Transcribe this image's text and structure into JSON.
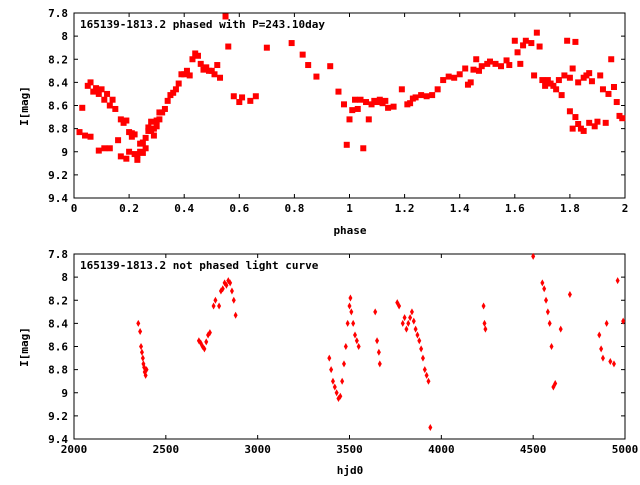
{
  "chart_data": [
    {
      "type": "scatter",
      "title": "165139-1813.2 phased with P=243.10day",
      "xlabel": "phase",
      "ylabel": "I[mag]",
      "xlim": [
        0,
        2
      ],
      "ylim": [
        9.4,
        7.8
      ],
      "y_inverted": true,
      "xticks": [
        "0",
        "0.2",
        "0.4",
        "0.6",
        "0.8",
        "1",
        "1.2",
        "1.4",
        "1.6",
        "1.8",
        "2"
      ],
      "yticks": [
        "7.8",
        "8",
        "8.2",
        "8.4",
        "8.6",
        "8.8",
        "9",
        "9.2",
        "9.4"
      ],
      "marker": "filled-square",
      "color": "#ff0000",
      "points": [
        [
          0.02,
          8.83
        ],
        [
          0.03,
          8.62
        ],
        [
          0.04,
          8.86
        ],
        [
          0.05,
          8.43
        ],
        [
          0.06,
          8.4
        ],
        [
          0.06,
          8.87
        ],
        [
          0.07,
          8.48
        ],
        [
          0.08,
          8.45
        ],
        [
          0.09,
          8.99
        ],
        [
          0.09,
          8.5
        ],
        [
          0.1,
          8.46
        ],
        [
          0.11,
          8.97
        ],
        [
          0.11,
          8.55
        ],
        [
          0.12,
          8.5
        ],
        [
          0.13,
          8.97
        ],
        [
          0.13,
          8.6
        ],
        [
          0.14,
          8.55
        ],
        [
          0.15,
          8.63
        ],
        [
          0.16,
          8.9
        ],
        [
          0.17,
          8.72
        ],
        [
          0.17,
          9.04
        ],
        [
          0.18,
          8.75
        ],
        [
          0.19,
          8.73
        ],
        [
          0.19,
          9.06
        ],
        [
          0.2,
          9.0
        ],
        [
          0.2,
          8.83
        ],
        [
          0.21,
          8.87
        ],
        [
          0.21,
          8.84
        ],
        [
          0.22,
          9.02
        ],
        [
          0.22,
          8.85
        ],
        [
          0.23,
          9.07
        ],
        [
          0.23,
          9.03
        ],
        [
          0.24,
          9.0
        ],
        [
          0.24,
          8.93
        ],
        [
          0.25,
          8.92
        ],
        [
          0.25,
          9.01
        ],
        [
          0.26,
          8.88
        ],
        [
          0.26,
          8.97
        ],
        [
          0.27,
          8.82
        ],
        [
          0.27,
          8.79
        ],
        [
          0.28,
          8.82
        ],
        [
          0.28,
          8.74
        ],
        [
          0.29,
          8.8
        ],
        [
          0.29,
          8.86
        ],
        [
          0.3,
          8.73
        ],
        [
          0.3,
          8.78
        ],
        [
          0.31,
          8.66
        ],
        [
          0.31,
          8.72
        ],
        [
          0.32,
          8.66
        ],
        [
          0.33,
          8.63
        ],
        [
          0.34,
          8.56
        ],
        [
          0.35,
          8.51
        ],
        [
          0.36,
          8.49
        ],
        [
          0.37,
          8.46
        ],
        [
          0.38,
          8.41
        ],
        [
          0.39,
          8.33
        ],
        [
          0.4,
          8.33
        ],
        [
          0.41,
          8.3
        ],
        [
          0.42,
          8.34
        ],
        [
          0.43,
          8.2
        ],
        [
          0.44,
          8.15
        ],
        [
          0.45,
          8.17
        ],
        [
          0.46,
          8.24
        ],
        [
          0.47,
          8.29
        ],
        [
          0.48,
          8.27
        ],
        [
          0.49,
          8.3
        ],
        [
          0.5,
          8.3
        ],
        [
          0.51,
          8.33
        ],
        [
          0.52,
          8.25
        ],
        [
          0.53,
          8.36
        ],
        [
          0.55,
          7.83
        ],
        [
          0.56,
          8.09
        ],
        [
          0.58,
          8.52
        ],
        [
          0.6,
          8.57
        ],
        [
          0.61,
          8.53
        ],
        [
          0.64,
          8.56
        ],
        [
          0.66,
          8.52
        ],
        [
          0.7,
          8.1
        ],
        [
          0.79,
          8.06
        ],
        [
          0.83,
          8.16
        ],
        [
          0.85,
          8.25
        ],
        [
          0.88,
          8.35
        ],
        [
          0.93,
          8.26
        ],
        [
          0.96,
          8.48
        ],
        [
          0.98,
          8.59
        ],
        [
          0.99,
          8.94
        ],
        [
          1.0,
          8.72
        ],
        [
          1.01,
          8.64
        ],
        [
          1.02,
          8.55
        ],
        [
          1.03,
          8.63
        ],
        [
          1.04,
          8.55
        ],
        [
          1.05,
          8.97
        ],
        [
          1.06,
          8.57
        ],
        [
          1.07,
          8.72
        ],
        [
          1.08,
          8.59
        ],
        [
          1.09,
          8.56
        ],
        [
          1.1,
          8.57
        ],
        [
          1.11,
          8.55
        ],
        [
          1.12,
          8.58
        ],
        [
          1.13,
          8.56
        ],
        [
          1.14,
          8.62
        ],
        [
          1.16,
          8.61
        ],
        [
          1.19,
          8.46
        ],
        [
          1.21,
          8.59
        ],
        [
          1.22,
          8.58
        ],
        [
          1.23,
          8.54
        ],
        [
          1.24,
          8.53
        ],
        [
          1.26,
          8.51
        ],
        [
          1.28,
          8.52
        ],
        [
          1.3,
          8.51
        ],
        [
          1.32,
          8.46
        ],
        [
          1.34,
          8.38
        ],
        [
          1.36,
          8.35
        ],
        [
          1.38,
          8.36
        ],
        [
          1.4,
          8.33
        ],
        [
          1.42,
          8.28
        ],
        [
          1.43,
          8.42
        ],
        [
          1.44,
          8.4
        ],
        [
          1.45,
          8.29
        ],
        [
          1.46,
          8.2
        ],
        [
          1.47,
          8.3
        ],
        [
          1.48,
          8.26
        ],
        [
          1.5,
          8.24
        ],
        [
          1.51,
          8.22
        ],
        [
          1.53,
          8.24
        ],
        [
          1.55,
          8.26
        ],
        [
          1.57,
          8.21
        ],
        [
          1.58,
          8.25
        ],
        [
          1.6,
          8.04
        ],
        [
          1.61,
          8.14
        ],
        [
          1.62,
          8.24
        ],
        [
          1.63,
          8.08
        ],
        [
          1.64,
          8.04
        ],
        [
          1.66,
          8.06
        ],
        [
          1.67,
          8.34
        ],
        [
          1.68,
          7.97
        ],
        [
          1.69,
          8.09
        ],
        [
          1.7,
          8.38
        ],
        [
          1.71,
          8.43
        ],
        [
          1.72,
          8.38
        ],
        [
          1.73,
          8.41
        ],
        [
          1.74,
          8.43
        ],
        [
          1.75,
          8.46
        ],
        [
          1.76,
          8.38
        ],
        [
          1.77,
          8.51
        ],
        [
          1.78,
          8.34
        ],
        [
          1.79,
          8.04
        ],
        [
          1.8,
          8.65
        ],
        [
          1.81,
          8.28
        ],
        [
          1.82,
          8.7
        ],
        [
          1.83,
          8.76
        ],
        [
          1.84,
          8.8
        ],
        [
          1.85,
          8.82
        ],
        [
          1.86,
          8.34
        ],
        [
          1.87,
          8.32
        ],
        [
          1.88,
          8.39
        ],
        [
          1.89,
          8.78
        ],
        [
          1.9,
          8.74
        ],
        [
          1.91,
          8.34
        ],
        [
          1.92,
          8.46
        ],
        [
          1.93,
          8.75
        ],
        [
          1.94,
          8.5
        ],
        [
          1.95,
          8.2
        ],
        [
          1.96,
          8.44
        ],
        [
          1.97,
          8.57
        ],
        [
          1.98,
          8.69
        ],
        [
          1.99,
          8.71
        ],
        [
          1.82,
          8.05
        ],
        [
          1.81,
          8.8
        ],
        [
          1.87,
          8.75
        ],
        [
          1.8,
          8.36
        ],
        [
          1.83,
          8.4
        ],
        [
          1.85,
          8.36
        ]
      ]
    },
    {
      "type": "scatter",
      "title": "165139-1813.2 not phased light curve",
      "xlabel": "hjd0",
      "ylabel": "I[mag]",
      "xlim": [
        2000,
        5000
      ],
      "ylim": [
        9.4,
        7.8
      ],
      "y_inverted": true,
      "xticks": [
        "2000",
        "2500",
        "3000",
        "3500",
        "4000",
        "4500",
        "5000"
      ],
      "yticks": [
        "7.8",
        "8",
        "8.2",
        "8.4",
        "8.6",
        "8.8",
        "9",
        "9.2",
        "9.4"
      ],
      "marker": "filled-diamond",
      "color": "#ff0000",
      "points": [
        [
          2350,
          8.4
        ],
        [
          2360,
          8.47
        ],
        [
          2365,
          8.6
        ],
        [
          2370,
          8.65
        ],
        [
          2375,
          8.7
        ],
        [
          2378,
          8.75
        ],
        [
          2382,
          8.78
        ],
        [
          2385,
          8.82
        ],
        [
          2390,
          8.85
        ],
        [
          2395,
          8.8
        ],
        [
          2680,
          8.55
        ],
        [
          2690,
          8.57
        ],
        [
          2700,
          8.6
        ],
        [
          2710,
          8.62
        ],
        [
          2720,
          8.56
        ],
        [
          2730,
          8.5
        ],
        [
          2740,
          8.48
        ],
        [
          2760,
          8.25
        ],
        [
          2770,
          8.2
        ],
        [
          2790,
          8.25
        ],
        [
          2800,
          8.12
        ],
        [
          2810,
          8.1
        ],
        [
          2820,
          8.05
        ],
        [
          2830,
          8.07
        ],
        [
          2840,
          8.03
        ],
        [
          2850,
          8.05
        ],
        [
          2860,
          8.12
        ],
        [
          2870,
          8.2
        ],
        [
          2880,
          8.33
        ],
        [
          3390,
          8.7
        ],
        [
          3400,
          8.8
        ],
        [
          3410,
          8.9
        ],
        [
          3420,
          8.95
        ],
        [
          3430,
          9.0
        ],
        [
          3440,
          9.05
        ],
        [
          3450,
          9.03
        ],
        [
          3460,
          8.9
        ],
        [
          3470,
          8.75
        ],
        [
          3480,
          8.6
        ],
        [
          3490,
          8.4
        ],
        [
          3500,
          8.25
        ],
        [
          3505,
          8.18
        ],
        [
          3510,
          8.3
        ],
        [
          3520,
          8.4
        ],
        [
          3530,
          8.5
        ],
        [
          3540,
          8.55
        ],
        [
          3550,
          8.6
        ],
        [
          3640,
          8.3
        ],
        [
          3650,
          8.55
        ],
        [
          3660,
          8.65
        ],
        [
          3665,
          8.75
        ],
        [
          3760,
          8.22
        ],
        [
          3770,
          8.25
        ],
        [
          3790,
          8.4
        ],
        [
          3800,
          8.35
        ],
        [
          3810,
          8.45
        ],
        [
          3820,
          8.4
        ],
        [
          3830,
          8.35
        ],
        [
          3840,
          8.3
        ],
        [
          3850,
          8.38
        ],
        [
          3860,
          8.45
        ],
        [
          3870,
          8.5
        ],
        [
          3880,
          8.55
        ],
        [
          3890,
          8.62
        ],
        [
          3900,
          8.7
        ],
        [
          3910,
          8.8
        ],
        [
          3920,
          8.85
        ],
        [
          3930,
          8.9
        ],
        [
          3940,
          9.3
        ],
        [
          4230,
          8.25
        ],
        [
          4235,
          8.4
        ],
        [
          4240,
          8.45
        ],
        [
          4500,
          7.82
        ],
        [
          4550,
          8.05
        ],
        [
          4560,
          8.1
        ],
        [
          4570,
          8.2
        ],
        [
          4580,
          8.3
        ],
        [
          4590,
          8.4
        ],
        [
          4600,
          8.6
        ],
        [
          4610,
          8.95
        ],
        [
          4620,
          8.92
        ],
        [
          4650,
          8.45
        ],
        [
          4700,
          8.15
        ],
        [
          4860,
          8.5
        ],
        [
          4870,
          8.62
        ],
        [
          4880,
          8.7
        ],
        [
          4900,
          8.4
        ],
        [
          4920,
          8.73
        ],
        [
          4940,
          8.75
        ],
        [
          4960,
          8.03
        ],
        [
          4990,
          8.38
        ]
      ]
    }
  ]
}
